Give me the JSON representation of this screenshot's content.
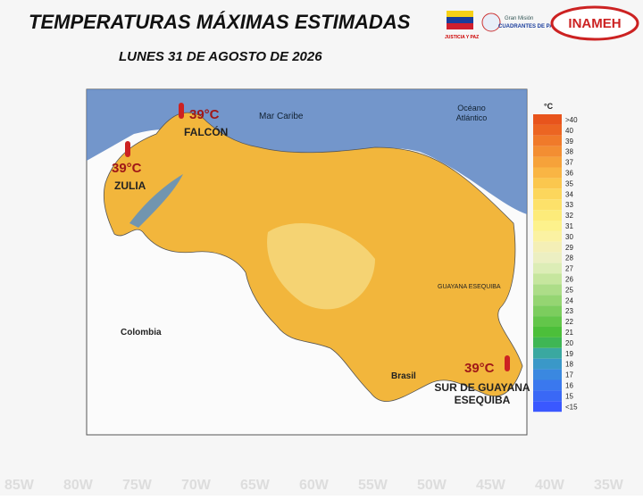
{
  "header": {
    "title": "TEMPERATURAS MÁXIMAS ESTIMADAS",
    "subtitle": "LUNES 31 DE AGOSTO DE 2026"
  },
  "logos": {
    "flag_caption": "JUSTICIA Y PAZ",
    "mission_top": "Gran Misión",
    "mission_name": "CUADRANTES DE PAZ",
    "institute": "INAMEH"
  },
  "map": {
    "labels": {
      "sea": "Mar Caribe",
      "ocean": "Océano Atlántico",
      "colombia": "Colombia",
      "brasil": "Brasil",
      "guayana": "GUAYANA ESEQUIBA"
    },
    "hotspots": [
      {
        "temp": "39°C",
        "region": "FALCÓN"
      },
      {
        "temp": "39°C",
        "region": "ZULIA"
      },
      {
        "temp": "39°C",
        "region": "SUR DE GUAYANA ESEQUIBA"
      }
    ]
  },
  "legend": {
    "unit": "°C",
    "items": [
      {
        "label": ">40",
        "color": "#e8541c"
      },
      {
        "label": "40",
        "color": "#ec6522"
      },
      {
        "label": "39",
        "color": "#f07a2a"
      },
      {
        "label": "38",
        "color": "#f38e32"
      },
      {
        "label": "37",
        "color": "#f6a23a"
      },
      {
        "label": "36",
        "color": "#f9b544"
      },
      {
        "label": "35",
        "color": "#fbc74e"
      },
      {
        "label": "34",
        "color": "#fcd65c"
      },
      {
        "label": "33",
        "color": "#fde16a"
      },
      {
        "label": "32",
        "color": "#fdeb7a"
      },
      {
        "label": "31",
        "color": "#fdf28c"
      },
      {
        "label": "30",
        "color": "#fbf2a2"
      },
      {
        "label": "29",
        "color": "#f4efb6"
      },
      {
        "label": "28",
        "color": "#ecefc2"
      },
      {
        "label": "27",
        "color": "#dcedb6"
      },
      {
        "label": "26",
        "color": "#c6e69e"
      },
      {
        "label": "25",
        "color": "#addd88"
      },
      {
        "label": "24",
        "color": "#95d572"
      },
      {
        "label": "23",
        "color": "#7ccd5e"
      },
      {
        "label": "22",
        "color": "#63c64a"
      },
      {
        "label": "21",
        "color": "#4cbf3a"
      },
      {
        "label": "20",
        "color": "#3fb654"
      },
      {
        "label": "19",
        "color": "#3aa8a0"
      },
      {
        "label": "18",
        "color": "#3a98c8"
      },
      {
        "label": "17",
        "color": "#3a88e0"
      },
      {
        "label": "16",
        "color": "#3a78ee"
      },
      {
        "label": "15",
        "color": "#3a68f6"
      },
      {
        "label": "<15",
        "color": "#3a58ff"
      }
    ]
  },
  "background": {
    "longitudes": [
      "85W",
      "80W",
      "75W",
      "70W",
      "65W",
      "60W",
      "55W",
      "50W",
      "45W",
      "40W",
      "35W"
    ]
  }
}
